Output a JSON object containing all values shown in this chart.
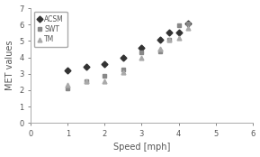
{
  "ACSM": {
    "x": [
      1.0,
      1.5,
      2.0,
      2.5,
      3.0,
      3.5,
      3.75,
      4.0,
      4.25
    ],
    "y": [
      3.2,
      3.45,
      3.6,
      3.95,
      4.6,
      5.05,
      5.5,
      5.5,
      6.05
    ],
    "color": "#333333",
    "marker": "D",
    "markersize": 3.5
  },
  "SWT": {
    "x": [
      1.0,
      1.5,
      2.0,
      2.5,
      3.0,
      3.5,
      3.75,
      4.0,
      4.25
    ],
    "y": [
      2.1,
      2.55,
      2.85,
      3.25,
      4.3,
      4.35,
      5.05,
      5.95,
      6.05
    ],
    "color": "#888888",
    "marker": "s",
    "markersize": 3.5
  },
  "TM": {
    "x": [
      1.0,
      1.5,
      2.0,
      2.5,
      3.0,
      3.5,
      3.75,
      4.0,
      4.25
    ],
    "y": [
      2.35,
      2.55,
      2.55,
      3.1,
      3.95,
      4.55,
      5.1,
      5.2,
      5.8
    ],
    "color": "#aaaaaa",
    "marker": "^",
    "markersize": 3.5
  },
  "xlabel": "Speed [mph]",
  "ylabel": "MET values",
  "xlim": [
    0,
    6
  ],
  "ylim": [
    0,
    7
  ],
  "xticks": [
    0,
    1,
    2,
    3,
    4,
    5,
    6
  ],
  "yticks": [
    0,
    1,
    2,
    3,
    4,
    5,
    6,
    7
  ],
  "legend_labels": [
    "ACSM",
    "SWT",
    "TM"
  ],
  "background_color": "#ffffff"
}
